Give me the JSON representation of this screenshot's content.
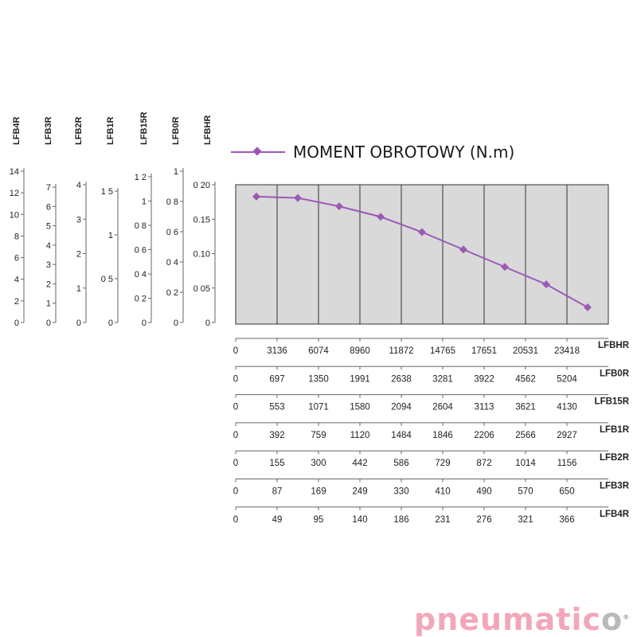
{
  "chart_data": {
    "type": "line",
    "series": [
      {
        "name": "MOMENT OBROTOWY (N.m)",
        "color": "#9b59b6",
        "x": [
          0,
          3136,
          6074,
          8960,
          11872,
          14765,
          17651,
          20531,
          23418
        ],
        "values": [
          0.183,
          0.181,
          0.169,
          0.154,
          0.132,
          0.107,
          0.082,
          0.057,
          0.024
        ]
      }
    ],
    "ylim": [
      0,
      0.2
    ],
    "plot_background": "#d9d9d9",
    "legend_position": "top",
    "left_scales": [
      {
        "label": "LFB4R",
        "ticks": [
          "14",
          "12",
          "10",
          "8",
          "6",
          "4",
          "2",
          "0"
        ]
      },
      {
        "label": "LFB3R",
        "ticks": [
          "7",
          "6",
          "5",
          "4",
          "3",
          "2",
          "1",
          "0"
        ]
      },
      {
        "label": "LFB2R",
        "ticks": [
          "4",
          "3",
          "2",
          "1",
          "0"
        ]
      },
      {
        "label": "LFB1R",
        "ticks": [
          "1 5",
          "1",
          "0 5",
          "0"
        ]
      },
      {
        "label": "LFB15R",
        "ticks": [
          "1 2",
          "1",
          "0 8",
          "0 6",
          "0 4",
          "0 2",
          "0"
        ]
      },
      {
        "label": "LFB0R",
        "ticks": [
          "1",
          "0 8",
          "0 6",
          "0 4",
          "0 2",
          "0"
        ]
      },
      {
        "label": "LFBHR",
        "ticks": [
          "0 20",
          "0.15",
          "0.10",
          "0 05",
          "0"
        ]
      }
    ],
    "bottom_axes": [
      {
        "label": "LFBHR",
        "values": [
          "0",
          "3136",
          "6074",
          "8960",
          "11872",
          "14765",
          "17651",
          "20531",
          "23418"
        ]
      },
      {
        "label": "LFB0R",
        "values": [
          "0",
          "697",
          "1350",
          "1991",
          "2638",
          "3281",
          "3922",
          "4562",
          "5204"
        ]
      },
      {
        "label": "LFB15R",
        "values": [
          "0",
          "553",
          "1071",
          "1580",
          "2094",
          "2604",
          "3113",
          "3621",
          "4130"
        ]
      },
      {
        "label": "LFB1R",
        "values": [
          "0",
          "392",
          "759",
          "1120",
          "1484",
          "1846",
          "2206",
          "2566",
          "2927"
        ]
      },
      {
        "label": "LFB2R",
        "values": [
          "0",
          "155",
          "300",
          "442",
          "586",
          "729",
          "872",
          "1014",
          "1156"
        ]
      },
      {
        "label": "LFB3R",
        "values": [
          "0",
          "87",
          "169",
          "249",
          "330",
          "410",
          "490",
          "570",
          "650"
        ]
      },
      {
        "label": "LFB4R",
        "values": [
          "0",
          "49",
          "95",
          "140",
          "186",
          "231",
          "276",
          "321",
          "366"
        ]
      }
    ]
  },
  "legend": {
    "title": "MOMENT OBROTOWY (N.m)"
  },
  "brand": {
    "part1": "pneumatic",
    "part2": "o",
    "reg": "®"
  }
}
